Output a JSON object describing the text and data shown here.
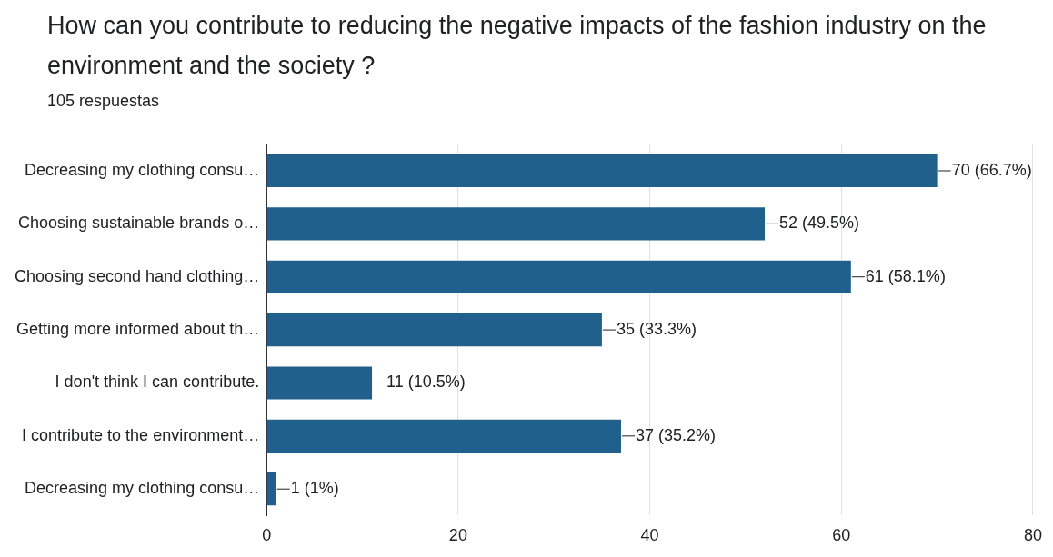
{
  "chart_data": {
    "type": "bar",
    "orientation": "horizontal",
    "title": "How can you contribute to reducing the negative impacts of the fashion industry on the environment and the society ?",
    "subtitle": "105 respuestas",
    "categories": [
      "Decreasing my clothing consu…",
      "Choosing sustainable brands o…",
      "Choosing second hand clothing…",
      "Getting more informed about th…",
      "I don't think I can contribute.",
      "I contribute to the environment…",
      "Decreasing my clothing consu…"
    ],
    "values": [
      70,
      52,
      61,
      35,
      11,
      37,
      1
    ],
    "value_labels": [
      "70 (66.7%)",
      "52 (49.5%)",
      "61 (58.1%)",
      "35 (33.3%)",
      "11 (10.5%)",
      "37 (35.2%)",
      "1 (1%)"
    ],
    "color": "#21608d",
    "xlim": [
      0,
      80
    ],
    "xticks": [
      0,
      20,
      40,
      60,
      80
    ],
    "grid": "x",
    "legend": false
  }
}
